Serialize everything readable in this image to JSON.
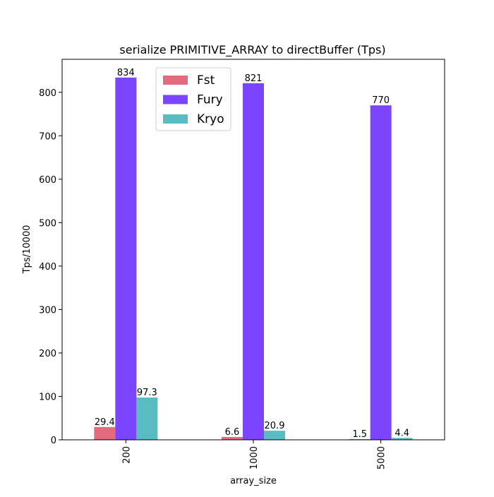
{
  "chart_data": {
    "type": "bar",
    "title": "serialize PRIMITIVE_ARRAY to directBuffer (Tps)",
    "xlabel": "array_size",
    "ylabel": "Tps/10000",
    "categories": [
      "200",
      "1000",
      "5000"
    ],
    "series": [
      {
        "name": "Fst",
        "color": "#e36b7e",
        "values": [
          29.4,
          6.6,
          1.5
        ],
        "labels": [
          "29.4",
          "6.6",
          "1.5"
        ]
      },
      {
        "name": "Fury",
        "color": "#7b45fc",
        "values": [
          834,
          821,
          770
        ],
        "labels": [
          "834",
          "821",
          "770"
        ]
      },
      {
        "name": "Kryo",
        "color": "#58bcc2",
        "values": [
          97.3,
          20.9,
          4.4
        ],
        "labels": [
          "97.3",
          "20.9",
          "4.4"
        ]
      }
    ],
    "ylim": [
      0,
      876
    ],
    "yticks": [
      0,
      100,
      200,
      300,
      400,
      500,
      600,
      700,
      800
    ],
    "legend_position": "top-center",
    "grid": false
  }
}
